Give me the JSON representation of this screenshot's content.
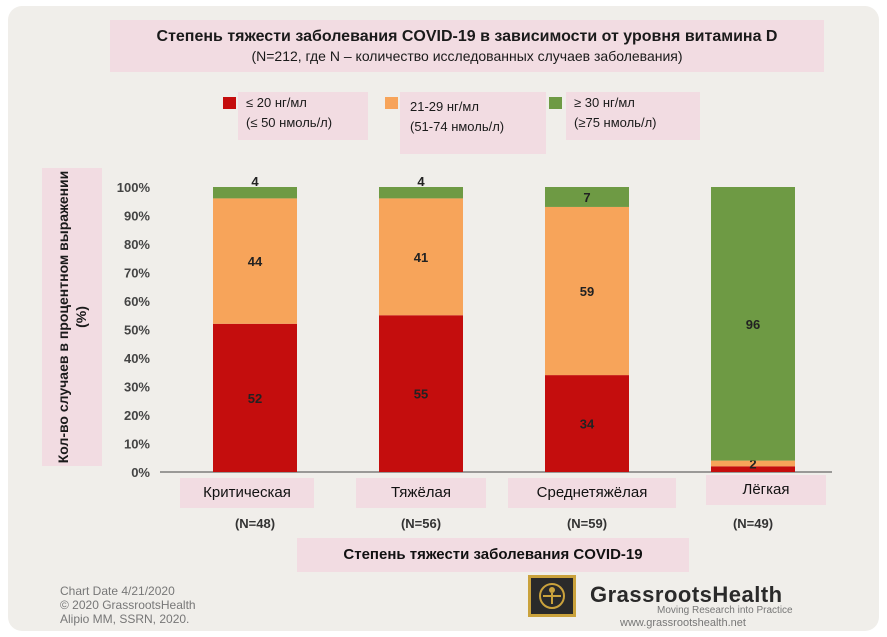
{
  "title": "Степень тяжести заболевания COVID-19 в зависимости от уровня  витамина D",
  "subtitle": "(N=212, где N – количество исследованных случаев заболевания)",
  "legend": [
    {
      "line1": "≤ 20 нг/мл",
      "line2": "(≤ 50 нмоль/л)",
      "color": "#c40d0d"
    },
    {
      "line1": "21-29 нг/мл",
      "line2": "(51-74 нмоль/л)",
      "color": "#f7a45a"
    },
    {
      "line1": "≥ 30 нг/мл",
      "line2": "(≥75 нмоль/л)",
      "color": "#6e9a44"
    }
  ],
  "ylabel": "Кол-во случаев в процентном выражении (%)",
  "xlabel": "Степень тяжести заболевания COVID-19",
  "n_labels": [
    "(N=48)",
    "(N=56)",
    "(N=59)",
    "(N=49)"
  ],
  "chart_data": {
    "type": "bar",
    "stacked": true,
    "categories": [
      "Критическая",
      "Тяжёлая",
      "Среднетяжёлая",
      "Лёгкая"
    ],
    "series": [
      {
        "name": "≤ 20 нг/мл (≤ 50 нмоль/л)",
        "color": "#c40d0d",
        "values": [
          52,
          55,
          34,
          2
        ]
      },
      {
        "name": "21-29 нг/мл (51-74 нмоль/л)",
        "color": "#f7a45a",
        "values": [
          44,
          41,
          59,
          2
        ]
      },
      {
        "name": "≥ 30 нг/мл (≥75 нмоль/л)",
        "color": "#6e9a44",
        "values": [
          4,
          4,
          7,
          96
        ]
      }
    ],
    "data_labels": [
      [
        "52",
        "55",
        "34",
        ""
      ],
      [
        "44",
        "41",
        "59",
        "2"
      ],
      [
        "4",
        "4",
        "7",
        "96"
      ]
    ],
    "yticks": [
      "0%",
      "10%",
      "20%",
      "30%",
      "40%",
      "50%",
      "60%",
      "70%",
      "80%",
      "90%",
      "100%"
    ],
    "ylim": [
      0,
      100
    ],
    "xlabel": "Степень тяжести заболевания COVID-19",
    "ylabel": "Кол-во случаев в процентном выражении (%)",
    "legend_position": "top"
  },
  "footer": {
    "line1": "Chart Date 4/21/2020",
    "line2": "© 2020 GrassrootsHealth",
    "line3": "Alipio MM, SSRN, 2020."
  },
  "logo": {
    "name": "GrassrootsHealth",
    "tagline": "Moving Research into Practice",
    "url": "www.grassrootshealth.net"
  }
}
